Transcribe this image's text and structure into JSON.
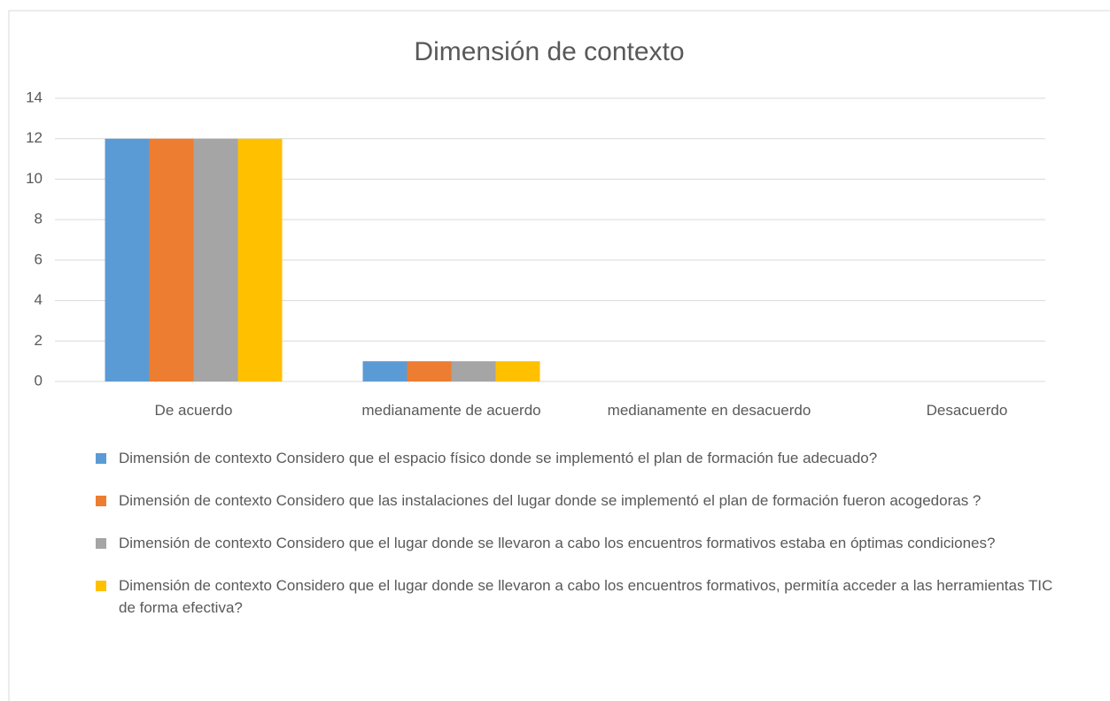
{
  "chart_data": {
    "type": "bar",
    "title": "Dimensión de contexto",
    "categories": [
      "De acuerdo",
      "medianamente de acuerdo",
      "medianamente en desacuerdo",
      "Desacuerdo"
    ],
    "series": [
      {
        "name": "Dimensión de contexto Considero que el espacio físico donde se implementó el plan de formación fue adecuado?",
        "color": "#5b9bd5",
        "values": [
          12,
          1,
          0,
          0
        ]
      },
      {
        "name": "Dimensión de contexto Considero que las instalaciones del lugar donde se implementó el plan de formación fueron acogedoras ?",
        "color": "#ed7d31",
        "values": [
          12,
          1,
          0,
          0
        ]
      },
      {
        "name": "Dimensión de contexto Considero que el lugar donde se llevaron a cabo los encuentros formativos estaba en óptimas condiciones?",
        "color": "#a5a5a5",
        "values": [
          12,
          1,
          0,
          0
        ]
      },
      {
        "name": "Dimensión de contexto Considero que el lugar donde se llevaron a cabo los encuentros formativos, permitía acceder a las herramientas TIC de forma efectiva?",
        "color": "#ffc000",
        "values": [
          12,
          1,
          0,
          0
        ]
      }
    ],
    "ylim": [
      0,
      14
    ],
    "yticks": [
      0,
      2,
      4,
      6,
      8,
      10,
      12,
      14
    ],
    "grid": true,
    "legend": "bottom"
  }
}
